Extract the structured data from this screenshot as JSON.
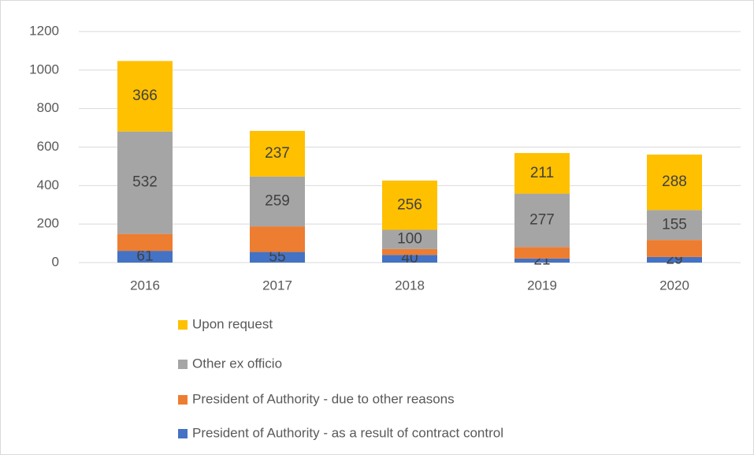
{
  "chart_data": {
    "type": "stacked_bar",
    "categories": [
      "2016",
      "2017",
      "2018",
      "2019",
      "2020"
    ],
    "series": [
      {
        "name": "President of Authority - as a result of contract control",
        "color": "#4472c4",
        "values": [
          61,
          55,
          40,
          21,
          29
        ],
        "show_labels": true
      },
      {
        "name": "President of Authority - due to other reasons",
        "color": "#ed7d31",
        "values": [
          88,
          133,
          30,
          60,
          89
        ],
        "show_labels": false
      },
      {
        "name": "Other ex officio",
        "color": "#a5a5a5",
        "values": [
          532,
          259,
          100,
          277,
          155
        ],
        "show_labels": true
      },
      {
        "name": "Upon request",
        "color": "#ffc000",
        "values": [
          366,
          237,
          256,
          211,
          288
        ],
        "show_labels": true
      }
    ],
    "ylim": [
      0,
      1200
    ],
    "yticks": [
      0,
      200,
      400,
      600,
      800,
      1000,
      1200
    ],
    "grid": true,
    "legend": "bottom"
  }
}
